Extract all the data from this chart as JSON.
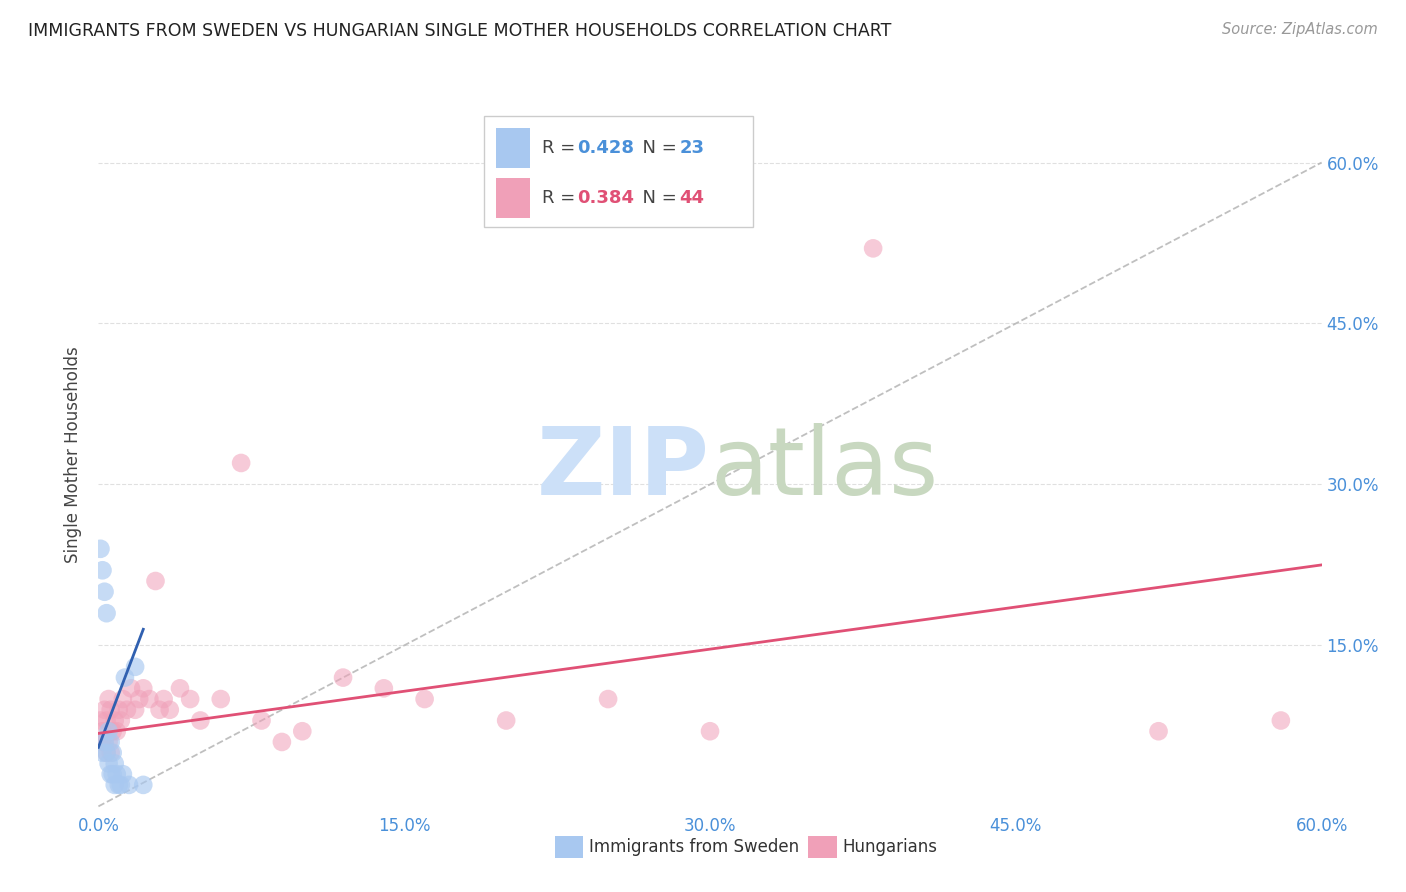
{
  "title": "IMMIGRANTS FROM SWEDEN VS HUNGARIAN SINGLE MOTHER HOUSEHOLDS CORRELATION CHART",
  "source": "Source: ZipAtlas.com",
  "ylabel": "Single Mother Households",
  "x_min": 0.0,
  "x_max": 0.6,
  "y_min": -0.005,
  "y_max": 0.66,
  "x_tick_vals": [
    0.0,
    0.15,
    0.3,
    0.45,
    0.6
  ],
  "x_tick_labels": [
    "0.0%",
    "15.0%",
    "30.0%",
    "45.0%",
    "60.0%"
  ],
  "y_tick_vals": [
    0.15,
    0.3,
    0.45,
    0.6
  ],
  "y_tick_labels": [
    "15.0%",
    "30.0%",
    "45.0%",
    "60.0%"
  ],
  "grid_color": "#cccccc",
  "scatter_blue": {
    "x": [
      0.001,
      0.002,
      0.002,
      0.003,
      0.003,
      0.004,
      0.004,
      0.005,
      0.005,
      0.006,
      0.006,
      0.007,
      0.007,
      0.008,
      0.008,
      0.009,
      0.01,
      0.011,
      0.012,
      0.013,
      0.015,
      0.018,
      0.022
    ],
    "y": [
      0.24,
      0.22,
      0.05,
      0.2,
      0.06,
      0.18,
      0.05,
      0.07,
      0.04,
      0.06,
      0.03,
      0.05,
      0.03,
      0.04,
      0.02,
      0.03,
      0.02,
      0.02,
      0.03,
      0.12,
      0.02,
      0.13,
      0.02
    ]
  },
  "scatter_pink": {
    "x": [
      0.001,
      0.002,
      0.002,
      0.003,
      0.003,
      0.004,
      0.004,
      0.005,
      0.005,
      0.006,
      0.006,
      0.007,
      0.008,
      0.009,
      0.01,
      0.011,
      0.012,
      0.014,
      0.016,
      0.018,
      0.02,
      0.022,
      0.025,
      0.028,
      0.03,
      0.032,
      0.035,
      0.04,
      0.045,
      0.05,
      0.06,
      0.07,
      0.08,
      0.09,
      0.1,
      0.12,
      0.14,
      0.16,
      0.2,
      0.25,
      0.3,
      0.38,
      0.52,
      0.58
    ],
    "y": [
      0.08,
      0.07,
      0.06,
      0.09,
      0.06,
      0.08,
      0.05,
      0.1,
      0.06,
      0.09,
      0.05,
      0.07,
      0.08,
      0.07,
      0.09,
      0.08,
      0.1,
      0.09,
      0.11,
      0.09,
      0.1,
      0.11,
      0.1,
      0.21,
      0.09,
      0.1,
      0.09,
      0.11,
      0.1,
      0.08,
      0.1,
      0.32,
      0.08,
      0.06,
      0.07,
      0.12,
      0.11,
      0.1,
      0.08,
      0.1,
      0.07,
      0.52,
      0.07,
      0.08
    ]
  },
  "blue_line": {
    "x": [
      0.0,
      0.022
    ],
    "y": [
      0.055,
      0.165
    ]
  },
  "pink_line": {
    "x": [
      0.0,
      0.6
    ],
    "y": [
      0.068,
      0.225
    ]
  },
  "diag_line": {
    "x": [
      0.0,
      0.6
    ],
    "y": [
      0.0,
      0.6
    ]
  },
  "legend_box": {
    "blue_patch_color": "#a8c8f0",
    "pink_patch_color": "#f0a0b8",
    "blue_r_color": "#4a90d9",
    "pink_r_color": "#e05075",
    "blue_r": "0.428",
    "blue_n": "23",
    "pink_r": "0.384",
    "pink_n": "44"
  },
  "bottom_legend": {
    "blue_label": "Immigrants from Sweden",
    "pink_label": "Hungarians",
    "patch_color_blue": "#a8c8f0",
    "patch_color_pink": "#f0a0b8"
  }
}
